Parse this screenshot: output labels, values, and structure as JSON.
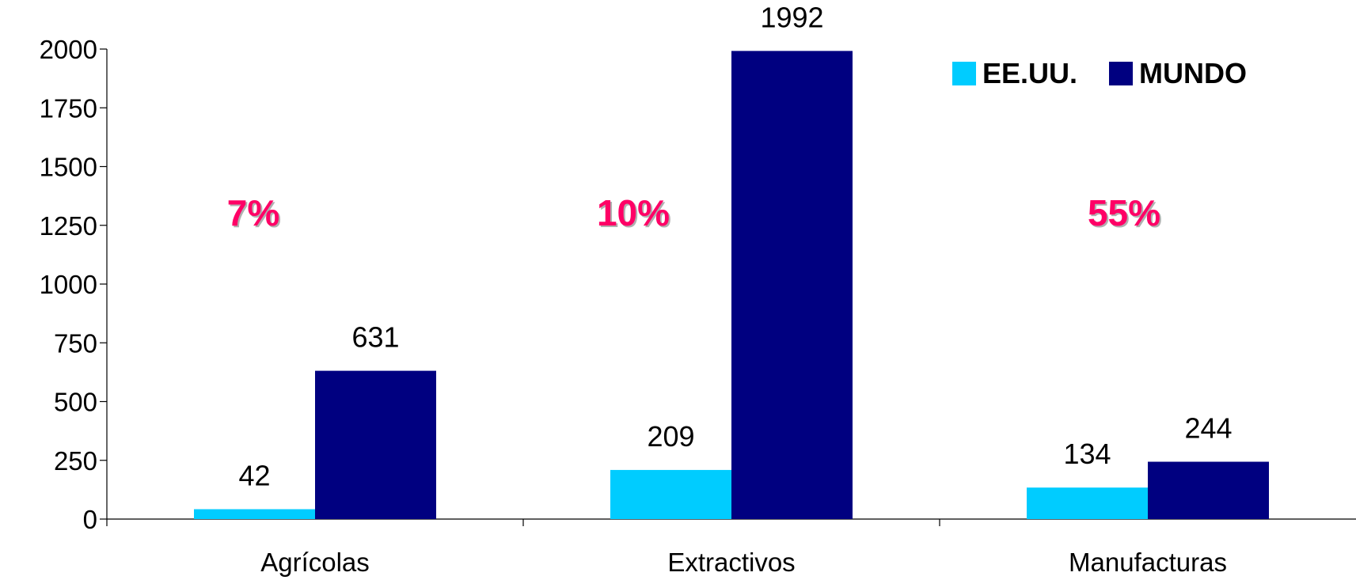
{
  "chart_data": {
    "type": "bar",
    "categories": [
      "Agrícolas",
      "Extractivos",
      "Manufacturas"
    ],
    "series": [
      {
        "name": "EE.UU.",
        "values": [
          42,
          209,
          134
        ],
        "color": "#00ccff"
      },
      {
        "name": "MUNDO",
        "values": [
          631,
          1992,
          244
        ],
        "color": "#000080"
      }
    ],
    "annotations": [
      "7%",
      "10%",
      "55%"
    ],
    "annotation_color": "#ff0066",
    "yticks": [
      0,
      250,
      500,
      750,
      1000,
      1250,
      1500,
      1750,
      2000
    ],
    "ylim": [
      0,
      2000
    ],
    "xlabel": "",
    "ylabel": "",
    "title": "",
    "grid": false,
    "legend": "top-right"
  }
}
